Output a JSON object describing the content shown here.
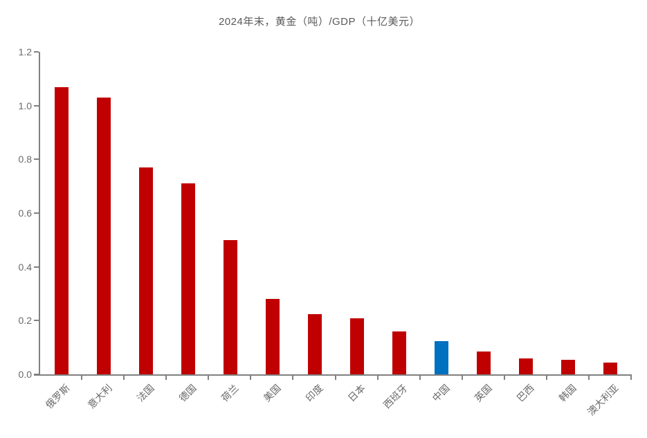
{
  "chart_data": {
    "type": "bar",
    "title": "2024年末，黄金（吨）/GDP（十亿美元）",
    "categories": [
      "俄罗斯",
      "意大利",
      "法国",
      "德国",
      "荷兰",
      "美国",
      "印度",
      "日本",
      "西班牙",
      "中国",
      "英国",
      "巴西",
      "韩国",
      "澳大利亚"
    ],
    "category_slugs": [
      "russia",
      "italy",
      "france",
      "germany",
      "netherlands",
      "usa",
      "india",
      "japan",
      "spain",
      "china",
      "uk",
      "brazil",
      "south-korea",
      "australia"
    ],
    "values": [
      1.07,
      1.03,
      0.77,
      0.71,
      0.5,
      0.28,
      0.225,
      0.21,
      0.16,
      0.125,
      0.085,
      0.06,
      0.055,
      0.043
    ],
    "highlight_index": 9,
    "bar_color": "#C00000",
    "highlight_color": "#0070C0",
    "axis_color": "#808080",
    "title_color": "#595959",
    "tick_label_color": "#696969",
    "ylabel": "",
    "xlabel": "",
    "ylim": [
      0,
      1.2
    ],
    "ytick_step": 0.2,
    "yticks": [
      "0.0",
      "0.2",
      "0.4",
      "0.6",
      "0.8",
      "1.0",
      "1.2"
    ],
    "grid": false,
    "legend": "none",
    "background": "#ffffff"
  }
}
